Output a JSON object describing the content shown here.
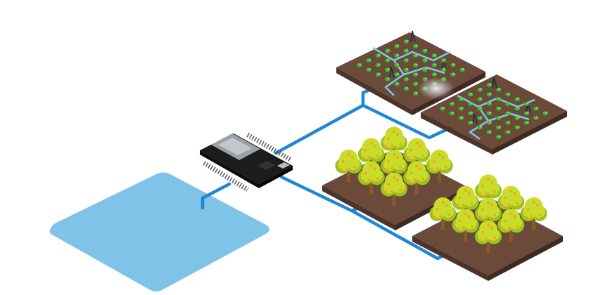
{
  "scene": {
    "colors": {
      "water": "#7fc3e8",
      "pipe": "#1f86d6",
      "soil": "#6b4a3a",
      "soil_edge": "#4d3429",
      "leaf": "#3dbb2f",
      "tree_canopy": "#c8dc2a",
      "tree_canopy_dark": "#9cc21f",
      "fruit": "#f5a623",
      "trunk": "#8a5a2b",
      "board": "#1c1c1c",
      "chip": "#9aa0a6"
    },
    "icons": {
      "water_source": "water-reservoir-icon",
      "controller": "microcontroller-board-icon",
      "field_a": "vegetable-plot-icon",
      "field_b": "vegetable-plot-icon",
      "orchard_a": "fruit-orchard-icon",
      "orchard_b": "fruit-orchard-icon"
    }
  }
}
